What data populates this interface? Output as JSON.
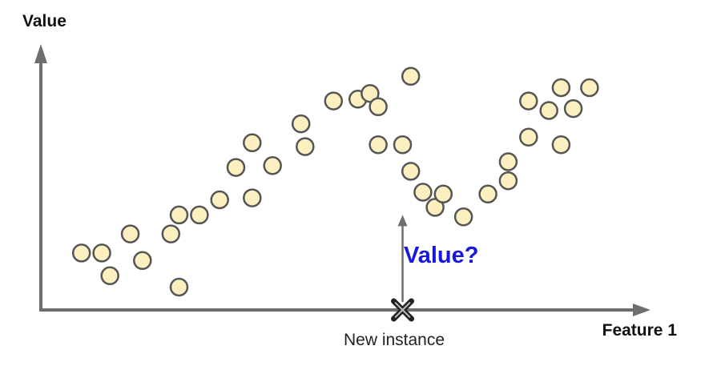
{
  "chart_data": {
    "type": "scatter",
    "xlabel": "Feature 1",
    "ylabel": "Value",
    "grid": false,
    "legend": "none",
    "points": [
      [
        1.0,
        3.0
      ],
      [
        1.5,
        3.0
      ],
      [
        1.7,
        1.8
      ],
      [
        2.2,
        4.0
      ],
      [
        2.5,
        2.6
      ],
      [
        3.2,
        4.0
      ],
      [
        3.4,
        5.0
      ],
      [
        3.4,
        1.2
      ],
      [
        3.9,
        5.0
      ],
      [
        4.4,
        5.8
      ],
      [
        4.8,
        7.5
      ],
      [
        5.2,
        5.9
      ],
      [
        5.2,
        8.8
      ],
      [
        5.7,
        7.6
      ],
      [
        6.4,
        9.8
      ],
      [
        6.5,
        8.6
      ],
      [
        7.2,
        11.0
      ],
      [
        7.8,
        11.1
      ],
      [
        8.1,
        11.4
      ],
      [
        8.3,
        10.7
      ],
      [
        8.3,
        8.7
      ],
      [
        8.9,
        8.7
      ],
      [
        9.1,
        12.3
      ],
      [
        9.1,
        7.3
      ],
      [
        9.4,
        6.2
      ],
      [
        9.7,
        5.4
      ],
      [
        9.9,
        6.1
      ],
      [
        10.4,
        4.9
      ],
      [
        11.0,
        6.1
      ],
      [
        11.5,
        6.8
      ],
      [
        11.5,
        7.8
      ],
      [
        12.0,
        9.1
      ],
      [
        12.0,
        11.0
      ],
      [
        12.5,
        10.5
      ],
      [
        12.8,
        11.7
      ],
      [
        12.8,
        8.7
      ],
      [
        13.1,
        10.6
      ],
      [
        13.5,
        11.7
      ]
    ],
    "new_instance": {
      "x": 8.9,
      "label": "New instance"
    },
    "query": {
      "label": "Value?",
      "arrow_y_max": 5.0
    },
    "xlim": [
      0,
      15.0
    ],
    "ylim": [
      0,
      14.0
    ],
    "colors": {
      "point_fill": "#fcefc0",
      "point_stroke": "#555555",
      "axis": "#6e6e6e",
      "query_text": "#1818dd",
      "cross": "#222222"
    }
  }
}
